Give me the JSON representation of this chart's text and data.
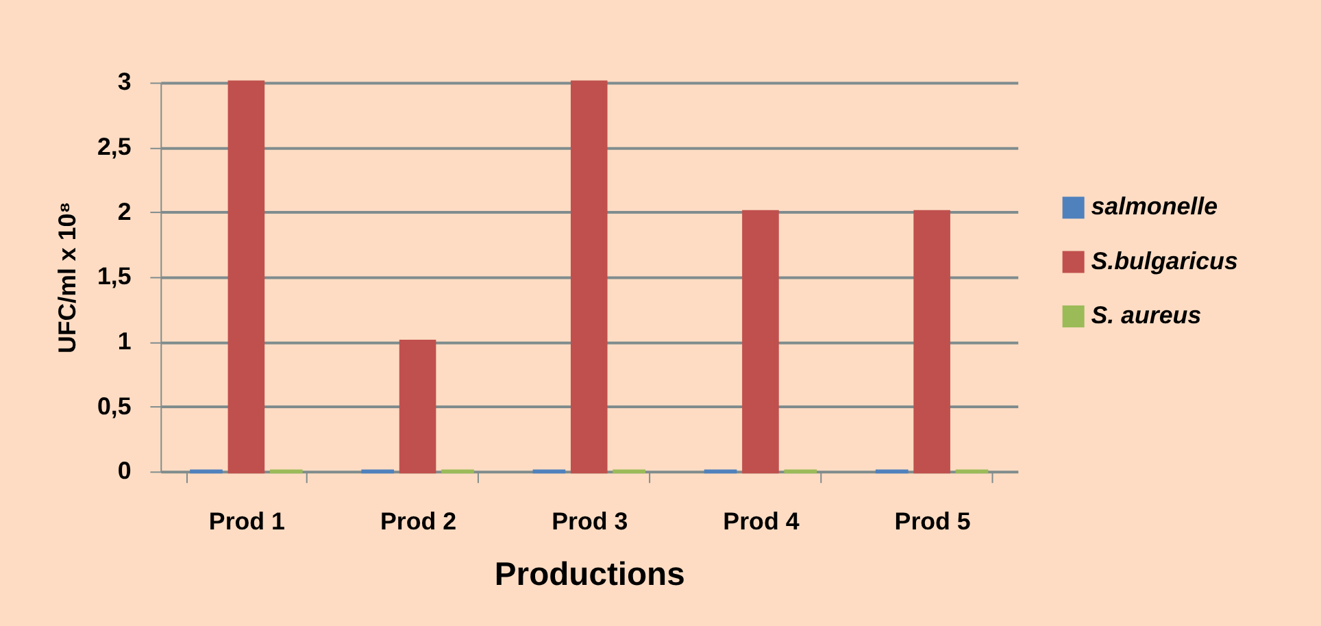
{
  "chart_data": {
    "type": "bar",
    "xlabel": "Productions",
    "ylabel": "UFC/ml x 10⁸",
    "categories": [
      "Prod 1",
      "Prod 2",
      "Prod 3",
      "Prod 4",
      "Prod 5"
    ],
    "series": [
      {
        "name": "salmonelle",
        "color": "#4f81bd",
        "values": [
          0,
          0,
          0,
          0,
          0
        ]
      },
      {
        "name": "S.bulgaricus",
        "color": "#c0504d",
        "values": [
          3,
          1,
          3,
          2,
          2
        ]
      },
      {
        "name": "S. aureus",
        "color": "#9bbb59",
        "values": [
          0,
          0,
          0,
          0,
          0
        ]
      }
    ],
    "ylim": [
      0,
      3
    ],
    "yticks": [
      0,
      {
        "value": 0.5,
        "label": "0,5"
      },
      1,
      {
        "value": 1.5,
        "label": "1,5"
      },
      2,
      {
        "value": 2.5,
        "label": "2,5"
      },
      3
    ],
    "grid": "y",
    "legend": "right"
  }
}
